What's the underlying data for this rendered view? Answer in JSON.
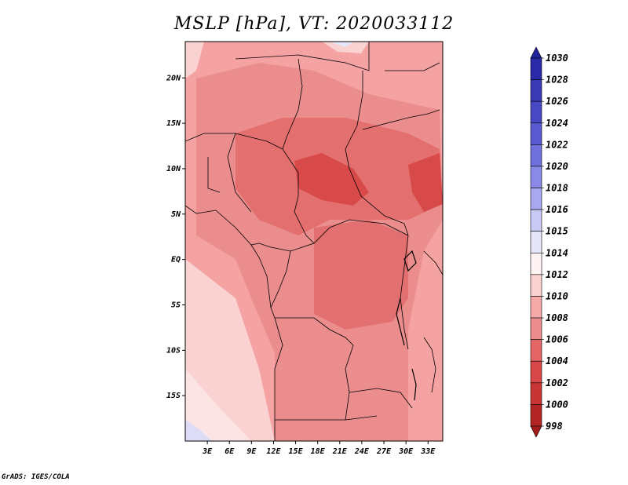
{
  "title": "MSLP [hPa], VT: 2020033112",
  "credit": "GrADS: IGES/COLA",
  "map": {
    "lon_range": [
      0,
      35
    ],
    "lat_range": [
      -20,
      24
    ],
    "lat_labels": [
      "20N",
      "15N",
      "10N",
      "5N",
      "EQ",
      "5S",
      "10S",
      "15S"
    ],
    "lon_labels": [
      "3E",
      "6E",
      "9E",
      "12E",
      "15E",
      "18E",
      "21E",
      "24E",
      "27E",
      "30E",
      "33E"
    ]
  },
  "colorbar": {
    "labels": [
      "1030",
      "1028",
      "1026",
      "1024",
      "1022",
      "1020",
      "1018",
      "1016",
      "1015",
      "1014",
      "1012",
      "1010",
      "1008",
      "1006",
      "1004",
      "1002",
      "1000",
      "998"
    ],
    "colors": [
      "#22229a",
      "#2a2aa8",
      "#3a3ab6",
      "#4848c4",
      "#5a5ad0",
      "#7070dc",
      "#8a8ae6",
      "#a8a8ee",
      "#cacaf6",
      "#e6e6fa",
      "#fff4f4",
      "#fbd2d2",
      "#f5aaaa",
      "#eb8d8d",
      "#e36565",
      "#d84848",
      "#c83535",
      "#b42626",
      "#a11b1b"
    ]
  }
}
